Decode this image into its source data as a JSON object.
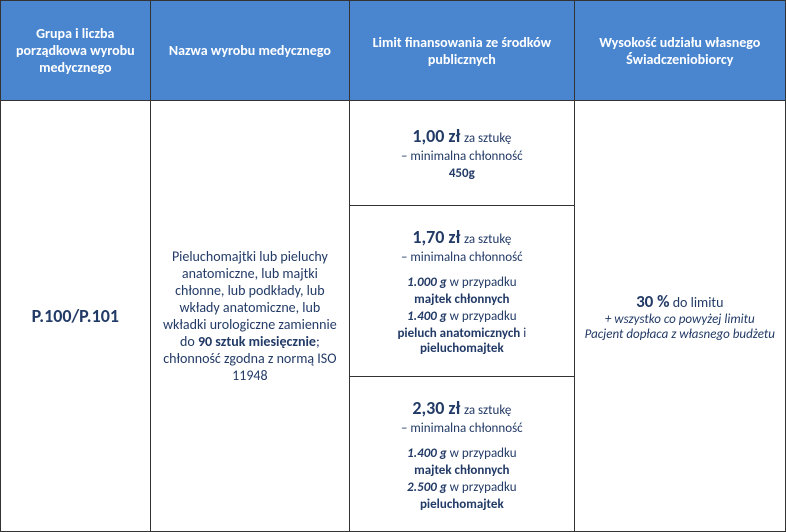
{
  "theme": {
    "header_bg": "#4a86d0",
    "header_text_color": "#ffffff",
    "body_text_color": "#223a66",
    "border_color": "#333333"
  },
  "headers": {
    "col1": "Grupa i liczba porządkowa wyrobu medycznego",
    "col2": "Nazwa wyrobu medycznego",
    "col3": "Limit finansowania ze środków publicznych",
    "col4": "Wysokość udziału własnego Świadczeniobiorcy"
  },
  "col1": {
    "code": "P.100/P.101"
  },
  "col2": {
    "pre": "Pieluchomajtki lub pieluchy anatomiczne, lub majtki chłonne, lub podkłady, lub wkłady anatomiczne, lub wkładki urologiczne zamiennie do",
    "bold_qty": "90 sztuk miesięcznie",
    "post": "; chłonność zgodna z normą ISO 11948"
  },
  "col3": {
    "row1": {
      "price": "1,00 zł",
      "per": "za sztukę",
      "line2": "– minimalna chłonność",
      "weight": "450g"
    },
    "row2": {
      "price": "1,70 zł",
      "per": "za sztukę",
      "line2": "– minimalna chłonność",
      "w1": "1.000 g",
      "w1txt": " w przypadku",
      "w1prod": "majtek chłonnych",
      "w2": "1.400 g",
      "w2txt": " w przypadku",
      "w2prod1": "pieluch anatomicznych",
      "w2and": " i ",
      "w2prod2": "pieluchomajtek"
    },
    "row3": {
      "price": "2,30 zł",
      "per": "za sztukę",
      "line2": "– minimalna chłonność",
      "w1": "1.400 g",
      "w1txt": " w przypadku",
      "w1prod": "majtek chłonnych",
      "w2": "2.500 g",
      "w2txt": " w przypadku",
      "w2prod": "pieluchomajtek"
    }
  },
  "col4": {
    "percent": "30 %",
    "percent_txt": " do limitu",
    "note": "+ wszystko co powyżej limitu Pacjent dopłaca z własnego budżetu"
  }
}
